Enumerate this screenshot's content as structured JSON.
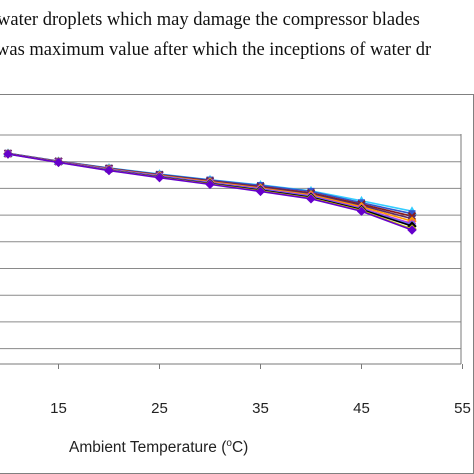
{
  "text": {
    "line1": "water droplets which may damage the compressor blades",
    "line2": "was maximum value after which the inceptions of water dr"
  },
  "chart_data": {
    "type": "line",
    "title": "",
    "xlabel": "Ambient Temperature (oC)",
    "xlabel_main": "Ambient Temperature (",
    "xlabel_sup": "o",
    "xlabel_end": "C)",
    "ylabel": "",
    "grid": true,
    "xlim": [
      5,
      55
    ],
    "xticks": [
      "15",
      "25",
      "35",
      "45",
      "55"
    ],
    "xtick_values": [
      15,
      25,
      35,
      45,
      55
    ],
    "x": [
      10,
      15,
      20,
      25,
      30,
      35,
      40,
      45,
      50
    ],
    "series": [
      {
        "color": "#33ccff",
        "marker": "triangle",
        "values": [
          50.0,
          42.0,
          35.2,
          29.0,
          23.3,
          18.0,
          12.0,
          2.0,
          -8.5
        ]
      },
      {
        "color": "#3355cc",
        "marker": "square",
        "values": [
          50.0,
          42.0,
          35.0,
          28.7,
          23.0,
          17.5,
          11.5,
          0.0,
          -11.0
        ]
      },
      {
        "color": "#8b1a1a",
        "marker": "x",
        "values": [
          49.8,
          41.8,
          34.6,
          28.2,
          22.2,
          16.3,
          9.8,
          -1.5,
          -13.5
        ]
      },
      {
        "color": "#5a2a6a",
        "marker": "x",
        "values": [
          49.7,
          41.7,
          34.4,
          27.9,
          21.7,
          15.7,
          9.0,
          -2.8,
          -16.0
        ]
      },
      {
        "color": "#ff9900",
        "marker": "diamond",
        "values": [
          49.6,
          41.5,
          34.1,
          27.5,
          21.2,
          14.8,
          8.0,
          -4.0,
          -18.5
        ]
      },
      {
        "color": "#cc33cc",
        "marker": "star",
        "values": [
          49.5,
          41.4,
          33.8,
          27.0,
          20.5,
          14.0,
          7.0,
          -5.5,
          -21.0
        ]
      },
      {
        "color": "#6666ff",
        "marker": "circle",
        "values": [
          49.5,
          41.3,
          33.6,
          26.8,
          20.2,
          13.6,
          6.4,
          -6.2,
          -22.0
        ]
      },
      {
        "color": "#000000",
        "marker": "diamond",
        "values": [
          49.4,
          41.0,
          33.0,
          26.0,
          19.5,
          12.8,
          5.6,
          -6.8,
          -23.5
        ]
      },
      {
        "color": "#cccc00",
        "marker": "diamond",
        "values": [
          49.3,
          40.9,
          32.8,
          25.7,
          19.0,
          12.0,
          4.7,
          -7.8,
          -26.5
        ]
      },
      {
        "color": "#6600cc",
        "marker": "diamond",
        "values": [
          49.2,
          40.8,
          32.6,
          25.4,
          18.6,
          11.5,
          4.0,
          -8.5,
          -27.5
        ]
      }
    ]
  }
}
